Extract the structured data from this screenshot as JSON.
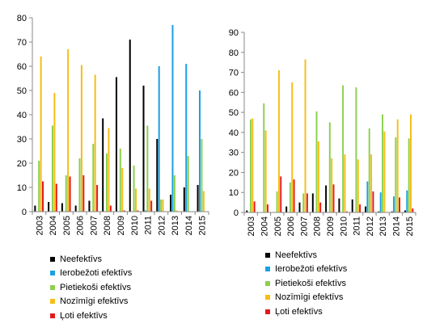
{
  "chart_data": [
    {
      "type": "bar",
      "categories": [
        "2003",
        "2004",
        "2005",
        "2006",
        "2007",
        "2008",
        "2009",
        "2010",
        "2011",
        "2012",
        "2013",
        "2014",
        "2015"
      ],
      "ylim": [
        0,
        80
      ],
      "yticks": [
        0,
        10,
        20,
        30,
        40,
        50,
        60,
        70,
        80
      ],
      "grid": false,
      "legend_position": "bottom",
      "series": [
        {
          "name": "Neefektīvs",
          "color": "#000000",
          "values": [
            2.5,
            4,
            3.5,
            2.5,
            4.5,
            38.5,
            55.5,
            71,
            52,
            30,
            7,
            10,
            11
          ]
        },
        {
          "name": "Ierobežoti efektīvs",
          "color": "#1ba1e2",
          "values": [
            0,
            0,
            0,
            0,
            0,
            0,
            0,
            0,
            0.5,
            60,
            77,
            61,
            50
          ]
        },
        {
          "name": "Pietiekoši efektīvs",
          "color": "#8cd04e",
          "values": [
            21,
            35.5,
            15,
            22,
            28,
            24,
            26,
            19,
            35.5,
            5,
            15,
            23,
            30
          ]
        },
        {
          "name": "Nozīmīgi efektīvs",
          "color": "#f6bd16",
          "values": [
            64,
            49,
            67,
            60.5,
            56.5,
            34.5,
            18,
            9.5,
            9.5,
            5,
            0.5,
            0,
            8.5
          ]
        },
        {
          "name": "Ļoti efektīvs",
          "color": "#e31a1c",
          "values": [
            12.5,
            11.5,
            14.5,
            15,
            11,
            2.5,
            0.5,
            0.5,
            4.5,
            0,
            0,
            0,
            0
          ]
        }
      ]
    },
    {
      "type": "bar",
      "categories": [
        "2003",
        "2004",
        "2005",
        "2006",
        "2007",
        "2008",
        "2009",
        "2010",
        "2011",
        "2012",
        "2013",
        "2014",
        "2015"
      ],
      "ylim": [
        0,
        90
      ],
      "yticks": [
        0,
        10,
        20,
        30,
        40,
        50,
        60,
        70,
        80,
        90
      ],
      "grid": false,
      "legend_position": "bottom",
      "series": [
        {
          "name": "Neefektīvs",
          "color": "#000000",
          "values": [
            1,
            0,
            0,
            3,
            5,
            9.5,
            13.5,
            7,
            6.5,
            3,
            0.5,
            0.5,
            1
          ]
        },
        {
          "name": "Ierobežoti efektīvs",
          "color": "#1ba1e2",
          "values": [
            0,
            0,
            0,
            0,
            0,
            0,
            0,
            0,
            0,
            15.5,
            10,
            8,
            11
          ]
        },
        {
          "name": "Pietiekoši efektīvs",
          "color": "#8cd04e",
          "values": [
            46.5,
            54.5,
            10.5,
            15,
            9.5,
            50.5,
            45,
            63.5,
            62.5,
            42,
            49,
            37.5,
            37
          ]
        },
        {
          "name": "Nozīmīgi efektīvs",
          "color": "#f6bd16",
          "values": [
            47,
            41,
            71,
            65,
            76.5,
            35.5,
            27,
            29,
            26.5,
            29,
            40.5,
            46.5,
            49
          ]
        },
        {
          "name": "Ļoti efektīvs",
          "color": "#e31a1c",
          "values": [
            5.5,
            4,
            18,
            16.5,
            9.5,
            5,
            14,
            0.5,
            4,
            10.5,
            0,
            7.5,
            2
          ]
        }
      ]
    }
  ]
}
